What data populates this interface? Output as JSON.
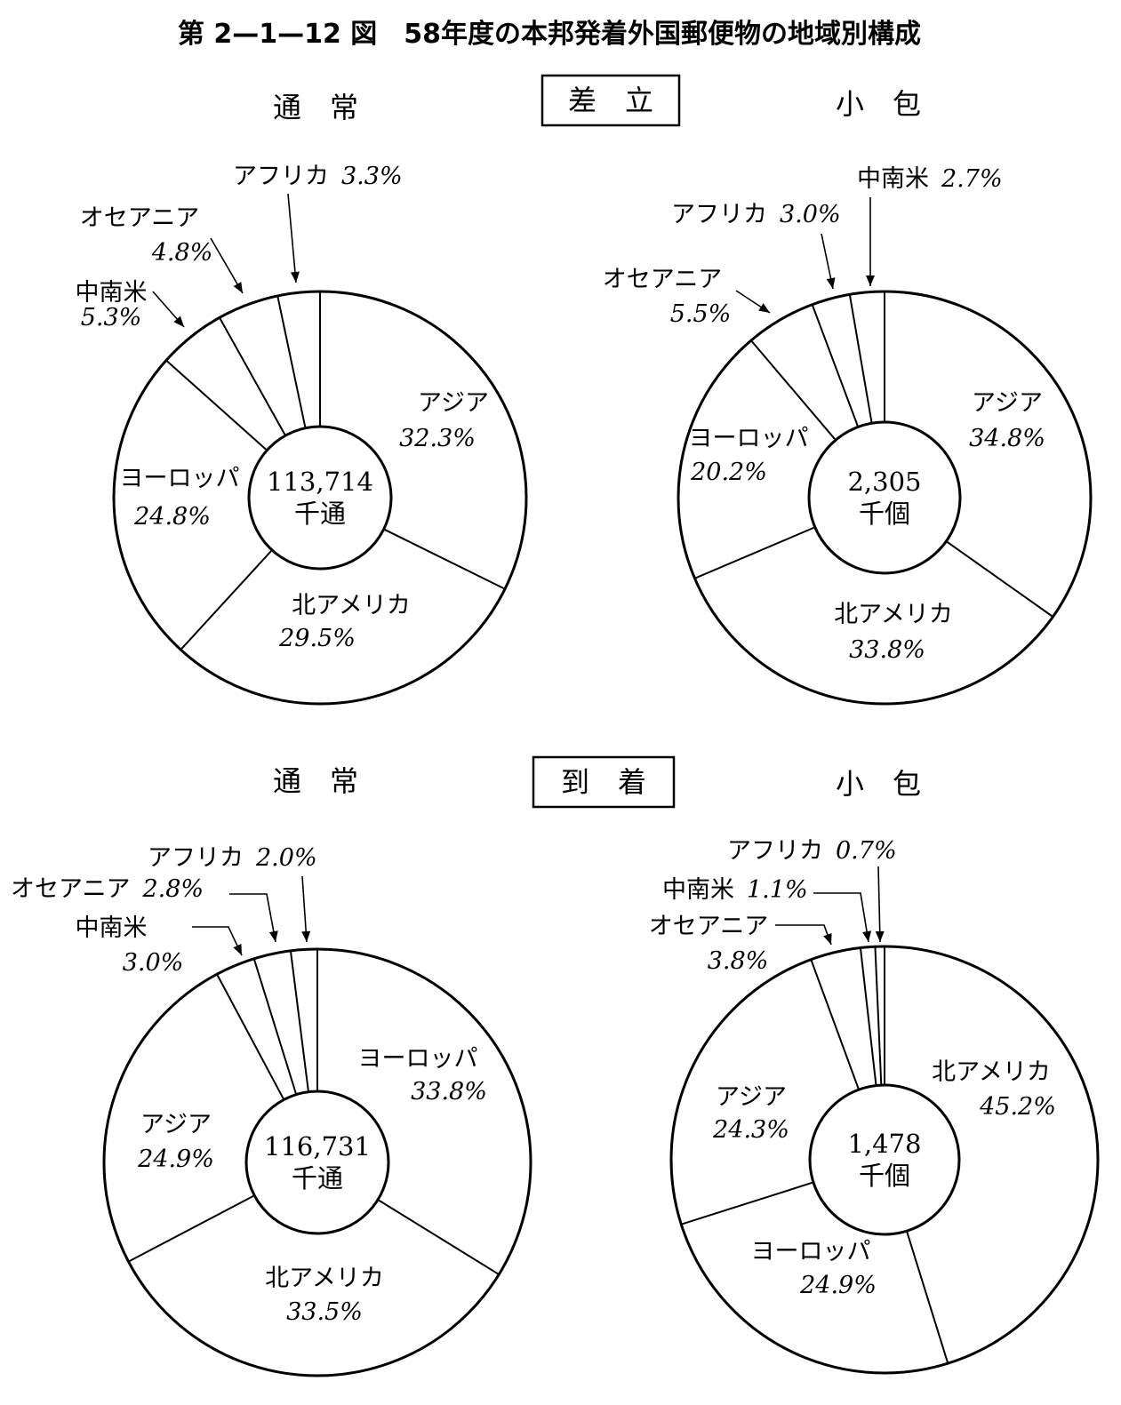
{
  "title": "第 2—1—12 図　58年度の本邦発着外国郵便物の地域別構成",
  "sections": [
    {
      "label": "差　立",
      "left_heading": "通　常",
      "right_heading": "小　包"
    },
    {
      "label": "到　着",
      "left_heading": "通　常",
      "right_heading": "小　包"
    }
  ],
  "chart_data": [
    {
      "type": "pie",
      "section": "差　立",
      "heading": "通　常",
      "center_value": "113,714",
      "center_unit": "千通",
      "slices": [
        {
          "label": "アジア",
          "value": 32.3,
          "value_text": "32.3%"
        },
        {
          "label": "北アメリカ",
          "value": 29.5,
          "value_text": "29.5%"
        },
        {
          "label": "ヨーロッパ",
          "value": 24.8,
          "value_text": "24.8%"
        },
        {
          "label": "中南米",
          "value": 5.3,
          "value_text": "5.3%"
        },
        {
          "label": "オセアニア",
          "value": 4.8,
          "value_text": "4.8%"
        },
        {
          "label": "アフリカ",
          "value": 3.3,
          "value_text": "3.3%"
        }
      ]
    },
    {
      "type": "pie",
      "section": "差　立",
      "heading": "小　包",
      "center_value": "2,305",
      "center_unit": "千個",
      "slices": [
        {
          "label": "アジア",
          "value": 34.8,
          "value_text": "34.8%"
        },
        {
          "label": "北アメリカ",
          "value": 33.8,
          "value_text": "33.8%"
        },
        {
          "label": "ヨーロッパ",
          "value": 20.2,
          "value_text": "20.2%"
        },
        {
          "label": "オセアニア",
          "value": 5.5,
          "value_text": "5.5%"
        },
        {
          "label": "アフリカ",
          "value": 3.0,
          "value_text": "3.0%"
        },
        {
          "label": "中南米",
          "value": 2.7,
          "value_text": "2.7%"
        }
      ]
    },
    {
      "type": "pie",
      "section": "到　着",
      "heading": "通　常",
      "center_value": "116,731",
      "center_unit": "千通",
      "slices": [
        {
          "label": "ヨーロッパ",
          "value": 33.8,
          "value_text": "33.8%"
        },
        {
          "label": "北アメリカ",
          "value": 33.5,
          "value_text": "33.5%"
        },
        {
          "label": "アジア",
          "value": 24.9,
          "value_text": "24.9%"
        },
        {
          "label": "中南米",
          "value": 3.0,
          "value_text": "3.0%"
        },
        {
          "label": "オセアニア",
          "value": 2.8,
          "value_text": "2.8%"
        },
        {
          "label": "アフリカ",
          "value": 2.0,
          "value_text": "2.0%"
        }
      ]
    },
    {
      "type": "pie",
      "section": "到　着",
      "heading": "小　包",
      "center_value": "1,478",
      "center_unit": "千個",
      "slices": [
        {
          "label": "北アメリカ",
          "value": 45.2,
          "value_text": "45.2%"
        },
        {
          "label": "ヨーロッパ",
          "value": 24.9,
          "value_text": "24.9%"
        },
        {
          "label": "アジア",
          "value": 24.3,
          "value_text": "24.3%"
        },
        {
          "label": "オセアニア",
          "value": 3.8,
          "value_text": "3.8%"
        },
        {
          "label": "中南米",
          "value": 1.1,
          "value_text": "1.1%"
        },
        {
          "label": "アフリカ",
          "value": 0.7,
          "value_text": "0.7%"
        }
      ]
    }
  ]
}
